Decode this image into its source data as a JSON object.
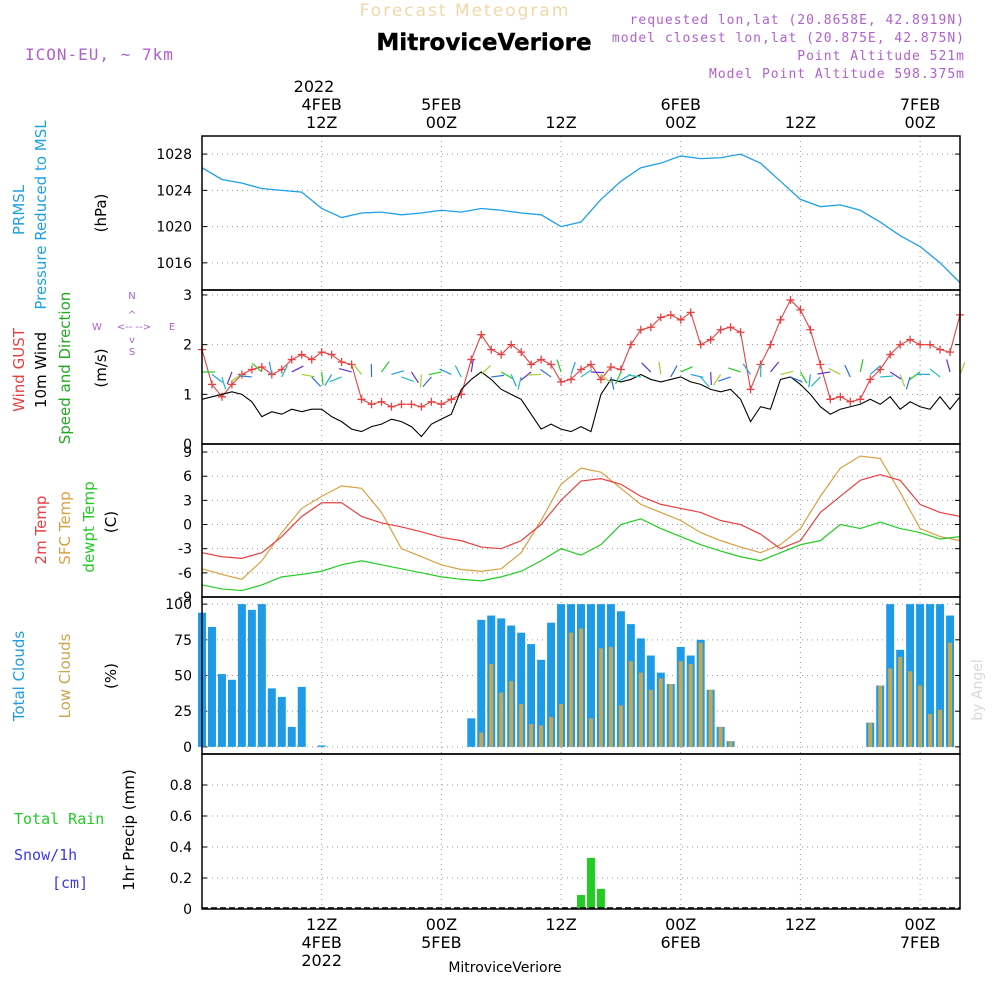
{
  "header": {
    "title": "Forecast Meteogram",
    "location": "MitroviceVeriore",
    "model": "ICON-EU, ~ 7km",
    "requested": "requested lon,lat (20.8658E, 42.8919N)",
    "closest": "model closest lon,lat (20.875E, 42.875N)",
    "point_alt": "Point Altitude 521m",
    "model_alt": "Model Point Altitude 598.375m",
    "credit": "by Angel",
    "footer_location": "MitroviceVeriore"
  },
  "colors": {
    "pressure": "#1ea0e6",
    "gust": "#e84040",
    "wind": "#000000",
    "temp": "#e84040",
    "sfc": "#d9a040",
    "dewpt": "#22cc22",
    "total_clouds": "#1e9be6",
    "low_clouds": "#c8a650",
    "rain": "#22cc22",
    "snow": "#3a3ae6",
    "purple": "#b060d0"
  },
  "time_axis": {
    "top_year": "2022",
    "top_ticks": [
      {
        "t": 12,
        "line1": "4FEB",
        "line2": "12Z"
      },
      {
        "t": 24,
        "line1": "5FEB",
        "line2": "00Z"
      },
      {
        "t": 36,
        "line1": "",
        "line2": "12Z"
      },
      {
        "t": 48,
        "line1": "6FEB",
        "line2": "00Z"
      },
      {
        "t": 60,
        "line1": "",
        "line2": "12Z"
      },
      {
        "t": 72,
        "line1": "7FEB",
        "line2": "00Z"
      }
    ],
    "bottom_ticks": [
      {
        "t": 12,
        "line1": "12Z",
        "line2": "4FEB",
        "line3": "2022"
      },
      {
        "t": 24,
        "line1": "00Z",
        "line2": "5FEB",
        "line3": ""
      },
      {
        "t": 36,
        "line1": "12Z",
        "line2": "",
        "line3": ""
      },
      {
        "t": 48,
        "line1": "00Z",
        "line2": "6FEB",
        "line3": ""
      },
      {
        "t": 60,
        "line1": "12Z",
        "line2": "",
        "line3": ""
      },
      {
        "t": 72,
        "line1": "00Z",
        "line2": "7FEB",
        "line3": ""
      }
    ]
  },
  "panels": {
    "pressure": {
      "label1": "PRMSL",
      "label2": "Pressure Reduced to MSL",
      "unit": "(hPa)"
    },
    "wind": {
      "label_gust": "Wind GUST",
      "label_wind": "10m Wind",
      "label_dir": "Speed and Direction",
      "unit": "(m/s)",
      "compass_n": "N",
      "compass_s": "S",
      "compass_w": "W",
      "compass_e": "E"
    },
    "temp": {
      "label_temp": "2m Temp",
      "label_sfc": "SFC Temp",
      "label_dew": "dewpt Temp",
      "unit": "(C)"
    },
    "clouds": {
      "label_total": "Total Clouds",
      "label_low": "Low Clouds",
      "unit": "(%)"
    },
    "precip": {
      "label_rain": "Total  Rain",
      "label_snow": "Snow/1h",
      "label_cm": "[cm]",
      "unit": "1hr Precip (mm)"
    }
  },
  "chart_data": [
    {
      "type": "line",
      "name": "PRMSL",
      "ylim": [
        1013,
        1030
      ],
      "yticks": [
        1016,
        1020,
        1024,
        1028
      ],
      "x": [
        0,
        2,
        4,
        6,
        8,
        10,
        12,
        14,
        16,
        18,
        20,
        22,
        24,
        26,
        28,
        30,
        32,
        34,
        36,
        38,
        40,
        42,
        44,
        46,
        48,
        50,
        52,
        54,
        56,
        58,
        60,
        62,
        64,
        66,
        68,
        70,
        72,
        74,
        76
      ],
      "values": [
        1026.5,
        1025.2,
        1024.8,
        1024.2,
        1024.0,
        1023.8,
        1022.0,
        1021.0,
        1021.5,
        1021.6,
        1021.3,
        1021.5,
        1021.8,
        1021.6,
        1022.0,
        1021.8,
        1021.5,
        1021.3,
        1020.0,
        1020.5,
        1023.0,
        1025.0,
        1026.5,
        1027.0,
        1027.8,
        1027.5,
        1027.6,
        1028.0,
        1027.0,
        1025.0,
        1023.0,
        1022.2,
        1022.4,
        1021.8,
        1020.5,
        1019.0,
        1017.8,
        1016.0,
        1013.8
      ]
    },
    {
      "type": "line",
      "name": "Wind",
      "ylim": [
        0,
        3.1
      ],
      "yticks": [
        0,
        1,
        2,
        3
      ],
      "x": [
        0,
        1,
        2,
        3,
        4,
        5,
        6,
        7,
        8,
        9,
        10,
        11,
        12,
        13,
        14,
        15,
        16,
        17,
        18,
        19,
        20,
        21,
        22,
        23,
        24,
        25,
        26,
        27,
        28,
        29,
        30,
        31,
        32,
        33,
        34,
        35,
        36,
        37,
        38,
        39,
        40,
        41,
        42,
        43,
        44,
        45,
        46,
        47,
        48,
        49,
        50,
        51,
        52,
        53,
        54,
        55,
        56,
        57,
        58,
        59,
        60,
        61,
        62,
        63,
        64,
        65,
        66,
        67,
        68,
        69,
        70,
        71,
        72,
        73,
        74,
        75,
        76
      ],
      "gust": [
        1.9,
        1.2,
        0.95,
        1.2,
        1.4,
        1.5,
        1.55,
        1.4,
        1.5,
        1.7,
        1.8,
        1.7,
        1.85,
        1.8,
        1.65,
        1.6,
        0.9,
        0.8,
        0.85,
        0.75,
        0.8,
        0.8,
        0.75,
        0.85,
        0.8,
        0.9,
        1.0,
        1.7,
        2.2,
        1.9,
        1.8,
        2.0,
        1.85,
        1.6,
        1.7,
        1.6,
        1.25,
        1.3,
        1.5,
        1.6,
        1.3,
        1.55,
        1.5,
        2.0,
        2.3,
        2.35,
        2.55,
        2.6,
        2.5,
        2.65,
        2.0,
        2.1,
        2.3,
        2.35,
        2.25,
        1.1,
        1.6,
        2.0,
        2.5,
        2.9,
        2.7,
        2.3,
        1.6,
        0.9,
        0.95,
        0.85,
        0.9,
        1.3,
        1.5,
        1.8,
        2.0,
        2.1,
        2.0,
        2.0,
        1.9,
        1.85,
        2.6
      ],
      "wind": [
        0.9,
        0.95,
        1.0,
        1.05,
        1.0,
        0.85,
        0.55,
        0.65,
        0.6,
        0.7,
        0.65,
        0.7,
        0.7,
        0.55,
        0.45,
        0.3,
        0.25,
        0.35,
        0.4,
        0.5,
        0.45,
        0.35,
        0.15,
        0.4,
        0.5,
        0.6,
        1.1,
        1.3,
        1.45,
        1.3,
        1.1,
        1.0,
        0.9,
        0.6,
        0.3,
        0.4,
        0.3,
        0.25,
        0.35,
        0.25,
        1.0,
        1.3,
        1.25,
        1.3,
        1.4,
        1.3,
        1.25,
        1.3,
        1.35,
        1.25,
        1.2,
        1.1,
        1.05,
        1.1,
        0.9,
        0.45,
        0.75,
        0.7,
        1.3,
        1.35,
        1.2,
        1.0,
        0.75,
        0.6,
        0.7,
        0.75,
        0.8,
        0.9,
        0.8,
        0.95,
        0.7,
        0.85,
        0.75,
        0.7,
        0.95,
        0.7,
        0.95
      ]
    },
    {
      "type": "line",
      "name": "Temperature",
      "ylim": [
        -9,
        10
      ],
      "yticks": [
        -9,
        -6,
        -3,
        0,
        3,
        6,
        9
      ],
      "x": [
        0,
        2,
        4,
        6,
        8,
        10,
        12,
        14,
        16,
        18,
        20,
        22,
        24,
        26,
        28,
        30,
        32,
        34,
        36,
        38,
        40,
        42,
        44,
        46,
        48,
        50,
        52,
        54,
        56,
        58,
        60,
        62,
        64,
        66,
        68,
        70,
        72,
        74,
        76
      ],
      "temp": [
        -3.5,
        -4.0,
        -4.2,
        -3.5,
        -1.5,
        1.0,
        2.7,
        2.7,
        1.0,
        0.2,
        -0.3,
        -0.9,
        -1.6,
        -2.0,
        -2.8,
        -3.0,
        -2.0,
        0.0,
        3.0,
        5.4,
        5.7,
        5.0,
        3.5,
        2.5,
        2.0,
        1.5,
        0.5,
        0.0,
        -1.2,
        -3.0,
        -2.0,
        1.5,
        3.5,
        5.5,
        6.2,
        5.5,
        2.5,
        1.5,
        1.0
      ]
    },
    {
      "type": "line",
      "name": "SFC Temp",
      "x": [
        0,
        2,
        4,
        6,
        8,
        10,
        12,
        14,
        16,
        18,
        20,
        22,
        24,
        26,
        28,
        30,
        32,
        34,
        36,
        38,
        40,
        42,
        44,
        46,
        48,
        50,
        52,
        54,
        56,
        58,
        60,
        62,
        64,
        66,
        68,
        70,
        72,
        74,
        76
      ],
      "sfc": [
        -5.5,
        -6.2,
        -6.8,
        -4.5,
        -1.0,
        2.0,
        3.5,
        4.8,
        4.5,
        1.5,
        -3.0,
        -4.0,
        -5.0,
        -5.6,
        -5.8,
        -5.5,
        -3.5,
        0.5,
        5.0,
        7.0,
        6.5,
        4.5,
        2.5,
        1.5,
        0.5,
        -1.0,
        -2.0,
        -2.8,
        -3.5,
        -2.5,
        -0.5,
        3.5,
        7.0,
        8.5,
        8.2,
        4.0,
        -0.5,
        -1.5,
        -2.0
      ]
    },
    {
      "type": "line",
      "name": "dewpt Temp",
      "x": [
        0,
        2,
        4,
        6,
        8,
        10,
        12,
        14,
        16,
        18,
        20,
        22,
        24,
        26,
        28,
        30,
        32,
        34,
        36,
        38,
        40,
        42,
        44,
        46,
        48,
        50,
        52,
        54,
        56,
        58,
        60,
        62,
        64,
        66,
        68,
        70,
        72,
        74,
        76
      ],
      "dewpt": [
        -7.5,
        -8.0,
        -8.2,
        -7.5,
        -6.5,
        -6.2,
        -5.8,
        -5.0,
        -4.5,
        -5.0,
        -5.5,
        -6.0,
        -6.5,
        -6.8,
        -7.0,
        -6.5,
        -5.8,
        -4.5,
        -3.0,
        -3.8,
        -2.5,
        0.0,
        0.7,
        -0.5,
        -1.5,
        -2.5,
        -3.3,
        -4.0,
        -4.5,
        -3.5,
        -2.5,
        -2.0,
        0.0,
        -0.5,
        0.3,
        -0.5,
        -1.0,
        -1.8,
        -1.5
      ]
    },
    {
      "type": "bar",
      "name": "Clouds",
      "ylim": [
        -5,
        105
      ],
      "yticks": [
        0,
        25,
        50,
        75,
        100
      ],
      "x": [
        0,
        1,
        2,
        3,
        4,
        5,
        6,
        7,
        8,
        9,
        10,
        11,
        12,
        13,
        14,
        15,
        16,
        17,
        18,
        19,
        20,
        21,
        22,
        23,
        24,
        25,
        26,
        27,
        28,
        29,
        30,
        31,
        32,
        33,
        34,
        35,
        36,
        37,
        38,
        39,
        40,
        41,
        42,
        43,
        44,
        45,
        46,
        47,
        48,
        49,
        50,
        51,
        52,
        53,
        54,
        55,
        56,
        57,
        58,
        59,
        60,
        61,
        62,
        63,
        64,
        65,
        66,
        67,
        68,
        69,
        70,
        71,
        72,
        73,
        74,
        75,
        76
      ],
      "total": [
        94,
        84,
        51,
        47,
        100,
        96,
        100,
        41,
        35,
        14,
        42,
        0,
        1,
        0,
        0,
        0,
        0,
        0,
        0,
        0,
        0,
        0,
        0,
        0,
        0,
        0,
        0,
        20,
        89,
        92,
        90,
        85,
        80,
        72,
        61,
        87,
        100,
        100,
        100,
        100,
        100,
        100,
        95,
        86,
        76,
        64,
        52,
        44,
        70,
        64,
        75,
        40,
        14,
        4,
        0,
        0,
        0,
        0,
        0,
        0,
        0,
        0,
        0,
        0,
        0,
        0,
        0,
        17,
        43,
        100,
        68,
        100,
        100,
        100,
        100,
        92,
        0
      ],
      "low": [
        0,
        0,
        0,
        0,
        0,
        0,
        0,
        0,
        0,
        0,
        0,
        0,
        0,
        0,
        0,
        0,
        0,
        0,
        0,
        0,
        0,
        0,
        0,
        0,
        0,
        0,
        0,
        0,
        10,
        58,
        38,
        46,
        30,
        16,
        15,
        21,
        30,
        80,
        83,
        20,
        69,
        70,
        29,
        60,
        52,
        40,
        48,
        44,
        60,
        58,
        73,
        40,
        14,
        4,
        0,
        0,
        0,
        0,
        0,
        0,
        0,
        0,
        0,
        0,
        0,
        0,
        0,
        17,
        43,
        55,
        63,
        53,
        43,
        23,
        26,
        73,
        0
      ]
    },
    {
      "type": "bar",
      "name": "1hr Precip",
      "ylim": [
        0,
        1.0
      ],
      "yticks": [
        0,
        0.2,
        0.4,
        0.6,
        0.8
      ],
      "x": [
        38,
        39,
        40
      ],
      "values": [
        0.09,
        0.33,
        0.13
      ]
    }
  ]
}
